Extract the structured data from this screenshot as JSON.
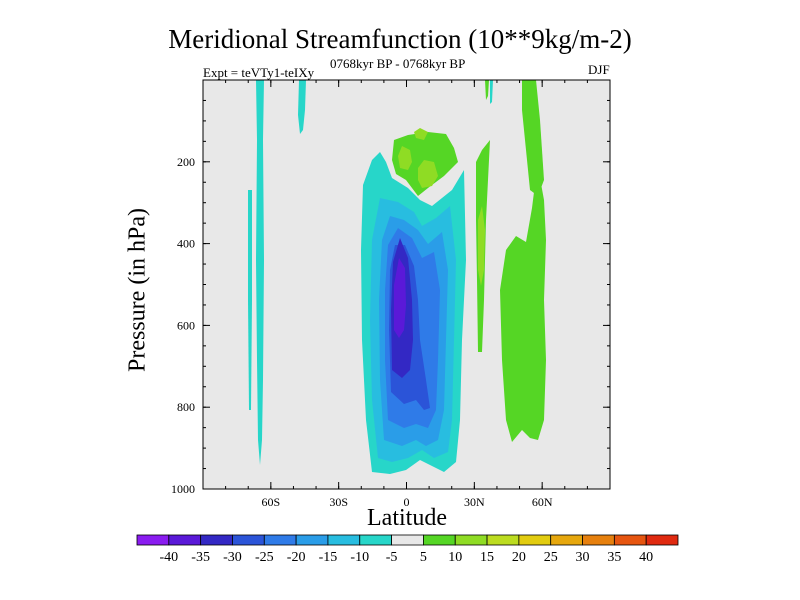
{
  "chart_data": {
    "type": "contour",
    "title": "Meridional Streamfunction (10**9kg/m-2)",
    "subtitle_left": "Expt = teVTy1-teIXy",
    "subtitle_center": "0768kyr BP - 0768kyr BP",
    "subtitle_right": "DJF",
    "xlabel": "Latitude",
    "ylabel": "Pressure (in hPa)",
    "xlim": [
      -90,
      90
    ],
    "ylim": [
      1000,
      0
    ],
    "x_ticks": [
      {
        "value": -60,
        "label": "60S"
      },
      {
        "value": -30,
        "label": "30S"
      },
      {
        "value": 0,
        "label": "0"
      },
      {
        "value": 30,
        "label": "30N"
      },
      {
        "value": 60,
        "label": "60N"
      }
    ],
    "y_ticks": [
      {
        "value": 200,
        "label": "200"
      },
      {
        "value": 400,
        "label": "400"
      },
      {
        "value": 600,
        "label": "600"
      },
      {
        "value": 800,
        "label": "800"
      },
      {
        "value": 1000,
        "label": "1000"
      }
    ],
    "colorbar": {
      "levels": [
        -40,
        -35,
        -30,
        -25,
        -20,
        -15,
        -10,
        -5,
        5,
        10,
        15,
        20,
        25,
        30,
        35,
        40
      ],
      "colors": [
        "#8a1cf0",
        "#5a19d8",
        "#3328c4",
        "#2b54d8",
        "#2f7be8",
        "#2a9de8",
        "#28bde0",
        "#27d6c9",
        "#e8e8e8",
        "#55d625",
        "#8fdc24",
        "#bcdc20",
        "#e2cc10",
        "#e6a70d",
        "#e6800e",
        "#e65510",
        "#e02a10"
      ]
    },
    "features": [
      {
        "name": "negative cell core (~ -30 to -35)",
        "lat_range": [
          -15,
          15
        ],
        "pressure_range": [
          250,
          960
        ],
        "min_value": -35
      },
      {
        "name": "positive cell NH subtropics",
        "lat_range": [
          40,
          60
        ],
        "pressure_range": [
          240,
          880
        ],
        "value": 10
      },
      {
        "name": "positive upper-level cell",
        "lat_range": [
          -5,
          20
        ],
        "pressure_range": [
          120,
          300
        ],
        "value": 10
      },
      {
        "name": "thin negative band 65S",
        "lat_range": [
          -64,
          -61
        ],
        "pressure_range": [
          0,
          940
        ],
        "value": -5
      }
    ]
  }
}
